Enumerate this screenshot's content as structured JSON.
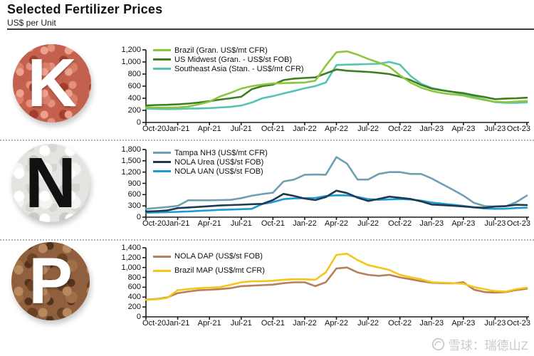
{
  "header": {
    "title": "Selected Fertilizer Prices",
    "subtitle": "US$ per Unit"
  },
  "watermark": {
    "logo": "xueqiu-snowball-logo",
    "text": "雪球：瑞德山Z"
  },
  "colors": {
    "axis": "#1a1a1a",
    "divider": "#b5b5b5",
    "header_rule": "#3a3a3a",
    "watermark_text": "#c9c9c9"
  },
  "chart_data": [
    {
      "id": "potash",
      "nutrient_letter": "K",
      "type": "line",
      "ylim": [
        0,
        1200
      ],
      "yticks": [
        0,
        200,
        400,
        600,
        800,
        1000,
        1200
      ],
      "x_tick_labels": [
        "Oct-20",
        "Jan-21",
        "Apr-21",
        "Jul-21",
        "Oct-21",
        "Jan-22",
        "Apr-22",
        "Jul-22",
        "Oct-22",
        "Jan-23",
        "Apr-23",
        "Jul-23",
        "Oct-23"
      ],
      "x_interval": "monthly",
      "grid": false,
      "legend_position": "top-left",
      "draw_order": [
        2,
        1,
        0
      ],
      "series": [
        {
          "name": "Brazil (Gran. US$/mt CFR)",
          "color": "#8CC63E",
          "values": [
            250,
            245,
            245,
            250,
            262,
            300,
            345,
            430,
            490,
            560,
            600,
            625,
            645,
            650,
            655,
            660,
            690,
            940,
            1160,
            1175,
            1120,
            1050,
            990,
            920,
            780,
            660,
            575,
            520,
            485,
            465,
            445,
            405,
            370,
            340,
            335,
            345,
            355
          ]
        },
        {
          "name": "US Midwest (Gran. - US$/st FOB)",
          "color": "#3F7E20",
          "values": [
            280,
            288,
            292,
            300,
            312,
            330,
            352,
            378,
            400,
            425,
            550,
            600,
            625,
            700,
            725,
            735,
            745,
            810,
            875,
            855,
            845,
            835,
            820,
            800,
            755,
            700,
            620,
            560,
            530,
            505,
            485,
            450,
            420,
            385,
            395,
            400,
            410
          ]
        },
        {
          "name": "Southeast Asia (Stan. - US$/mt CFR)",
          "color": "#55C4B3",
          "values": [
            230,
            224,
            220,
            224,
            228,
            232,
            238,
            248,
            258,
            280,
            330,
            400,
            435,
            480,
            520,
            565,
            600,
            660,
            950,
            955,
            960,
            965,
            970,
            1000,
            955,
            770,
            640,
            570,
            535,
            505,
            465,
            420,
            380,
            335,
            325,
            325,
            332
          ]
        }
      ]
    },
    {
      "id": "nitrogen",
      "nutrient_letter": "N",
      "type": "line",
      "ylim": [
        0,
        1800
      ],
      "yticks": [
        0,
        300,
        600,
        900,
        1200,
        1500,
        1800
      ],
      "x_tick_labels": [
        "Oct-20",
        "Jan-21",
        "Apr-21",
        "Jul-21",
        "Oct-21",
        "Jan-22",
        "Apr-22",
        "Jul-22",
        "Oct-22",
        "Jan-23",
        "Apr-23",
        "Jul-23",
        "Oct-23"
      ],
      "x_interval": "monthly",
      "grid": false,
      "legend_position": "top-left",
      "draw_order": [
        0,
        2,
        1
      ],
      "series": [
        {
          "name": "Tampa NH3 (US$/mt CFR)",
          "color": "#6E9FB2",
          "values": [
            220,
            245,
            270,
            300,
            450,
            450,
            450,
            455,
            460,
            505,
            570,
            615,
            650,
            950,
            1000,
            1130,
            1135,
            1130,
            1600,
            1425,
            1000,
            1000,
            1150,
            1200,
            1200,
            1150,
            1150,
            1030,
            880,
            730,
            575,
            380,
            295,
            285,
            290,
            400,
            575
          ]
        },
        {
          "name": "NOLA Urea (US$/st FOB)",
          "color": "#21384E",
          "values": [
            150,
            162,
            178,
            240,
            258,
            272,
            292,
            310,
            322,
            332,
            345,
            355,
            455,
            620,
            565,
            495,
            455,
            535,
            705,
            640,
            520,
            430,
            485,
            545,
            515,
            485,
            420,
            335,
            320,
            305,
            285,
            262,
            250,
            282,
            295,
            330,
            320
          ]
        },
        {
          "name": "NOLA UAN (US$/st FOB)",
          "color": "#1C9AD6",
          "values": [
            120,
            126,
            132,
            142,
            152,
            166,
            180,
            196,
            202,
            212,
            222,
            350,
            400,
            480,
            500,
            505,
            512,
            562,
            582,
            580,
            540,
            482,
            462,
            472,
            482,
            470,
            440,
            390,
            360,
            330,
            300,
            262,
            232,
            222,
            226,
            242,
            252
          ]
        }
      ]
    },
    {
      "id": "phosphate",
      "nutrient_letter": "P",
      "type": "line",
      "ylim": [
        0,
        1400
      ],
      "yticks": [
        0,
        200,
        400,
        600,
        800,
        1000,
        1200,
        1400
      ],
      "x_tick_labels": [
        "Oct-20",
        "Jan-21",
        "Apr-21",
        "Jul-21",
        "Oct-21",
        "Jan-22",
        "Apr-22",
        "Jul-22",
        "Oct-22",
        "Jan-23",
        "Apr-23",
        "Jul-23",
        "Oct-23"
      ],
      "x_interval": "monthly",
      "grid": false,
      "legend_position": "top-left",
      "draw_order": [
        0,
        1
      ],
      "series": [
        {
          "name": "NOLA DAP (US$/st FOB)",
          "color": "#B5805A",
          "values": [
            350,
            362,
            392,
            480,
            512,
            540,
            548,
            562,
            582,
            622,
            632,
            642,
            652,
            682,
            700,
            700,
            622,
            702,
            980,
            1000,
            900,
            852,
            832,
            852,
            800,
            762,
            722,
            692,
            682,
            678,
            702,
            552,
            502,
            492,
            502,
            542,
            572
          ]
        },
        {
          "name": "Brazil MAP (US$/mt CFR)",
          "color": "#F5C518",
          "values": [
            345,
            356,
            382,
            540,
            562,
            582,
            592,
            602,
            650,
            700,
            720,
            722,
            732,
            752,
            762,
            760,
            752,
            900,
            1255,
            1280,
            1150,
            1050,
            1000,
            950,
            852,
            802,
            762,
            702,
            692,
            682,
            672,
            602,
            562,
            522,
            512,
            562,
            592
          ]
        }
      ]
    }
  ]
}
